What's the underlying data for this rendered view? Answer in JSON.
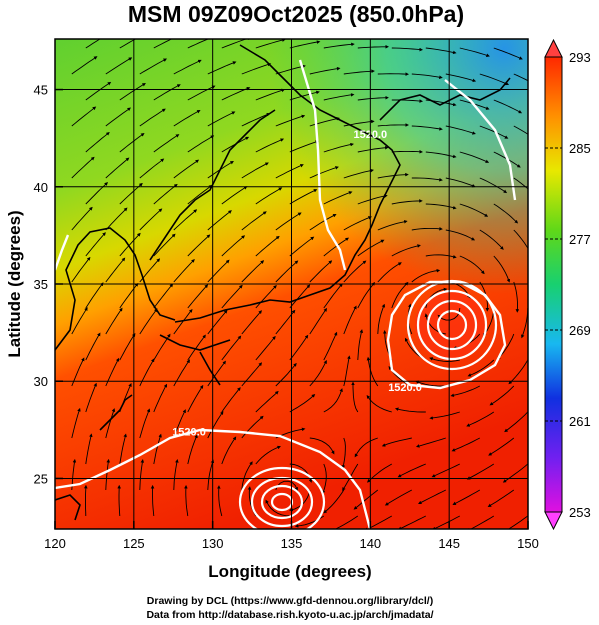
{
  "figure": {
    "title": "MSM 09Z09Oct2025 (850.0hPa)",
    "xlabel": "Longitude (degrees)",
    "ylabel": "Latitude  (degrees)",
    "credit_line1": "Drawing by DCL (https://www.gfd-dennou.org/library/dcl/)",
    "credit_line2": "Data from http://database.rish.kyoto-u.ac.jp/arch/jmadata/"
  },
  "map_data": {
    "type": "field_map",
    "xlim": [
      120,
      150
    ],
    "ylim": [
      22.4,
      47.6
    ],
    "xticks": [
      120,
      125,
      130,
      135,
      140,
      145,
      150
    ],
    "yticks": [
      25,
      30,
      35,
      40,
      45
    ],
    "grid": true,
    "colorbar": {
      "min": 253,
      "max": 293,
      "ticks": [
        293,
        285,
        277,
        269,
        261,
        253
      ],
      "colors": [
        "#e010e0",
        "#3050ff",
        "#10c8e8",
        "#18c848",
        "#c8e800",
        "#ffb000",
        "#ff2800",
        "#e02000"
      ]
    },
    "contour_labels": [
      {
        "text": "1520.0",
        "lon": 142.2,
        "lat": 29.5
      },
      {
        "text": "1520.0",
        "lon": 128.5,
        "lat": 27.2
      },
      {
        "text": "1520.0",
        "lon": 140.0,
        "lat": 42.5
      }
    ],
    "low_centers": [
      {
        "lon": 145.0,
        "lat": 33.8
      },
      {
        "lon": 134.5,
        "lat": 24.2
      }
    ]
  }
}
